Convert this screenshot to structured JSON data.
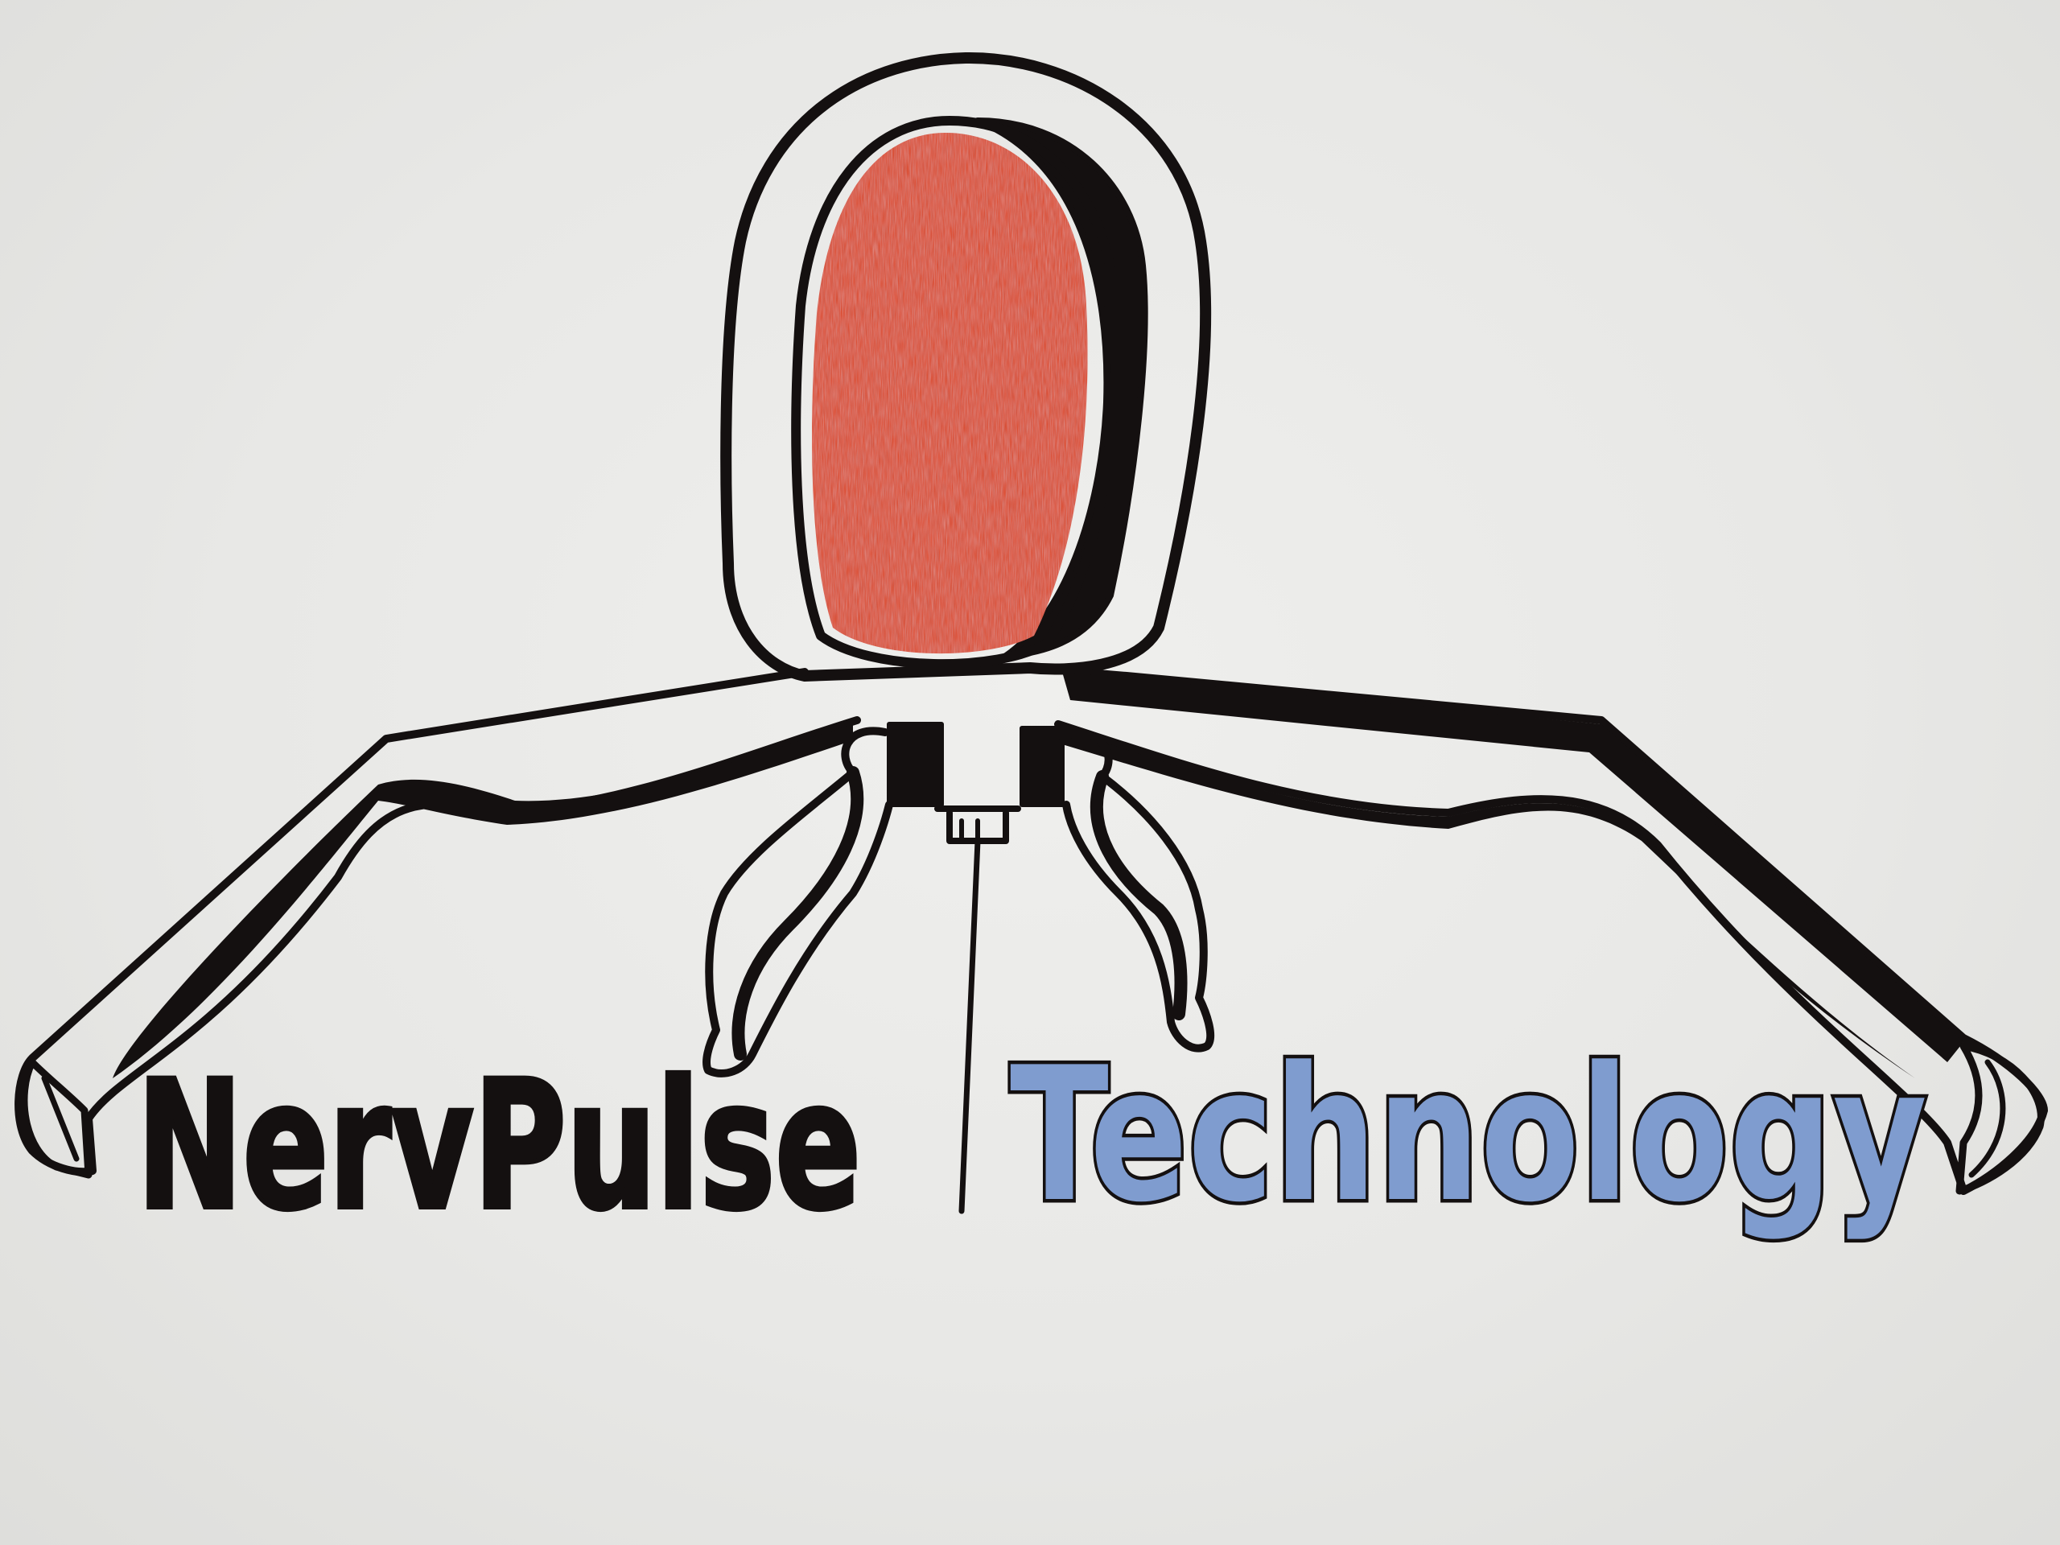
{
  "logo": {
    "brand_name": "NervPulse",
    "tagline": "Technology"
  },
  "colors": {
    "paper": "#e9e9e7",
    "ink": "#141010",
    "eye_fill": "#e0451e",
    "tagline_fill": "#7f9ccf"
  },
  "icons": {
    "emblem": "robot-eye-figure-icon"
  }
}
